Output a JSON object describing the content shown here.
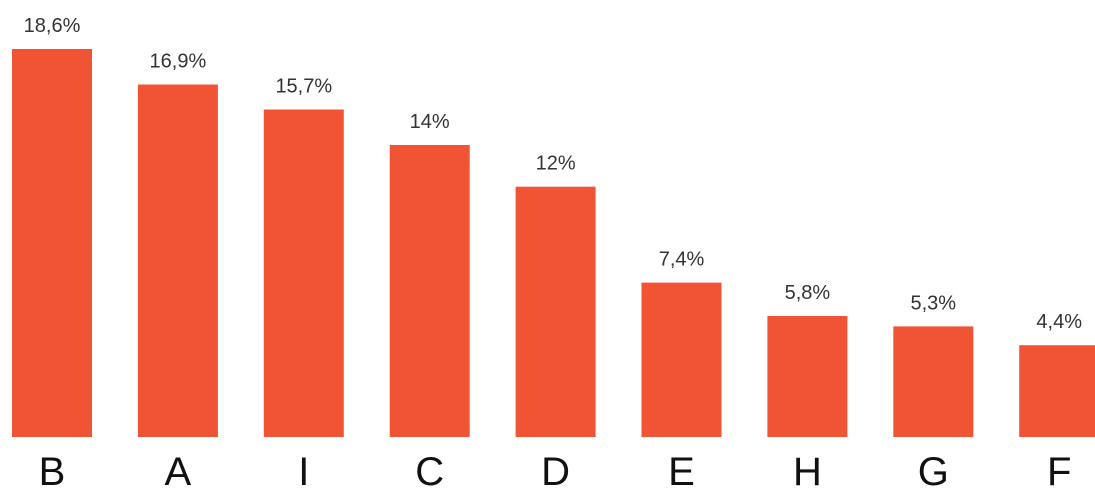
{
  "chart_data": {
    "type": "bar",
    "categories": [
      "B",
      "A",
      "I",
      "C",
      "D",
      "E",
      "H",
      "G",
      "F"
    ],
    "values": [
      18.6,
      16.9,
      15.7,
      14,
      12,
      7.4,
      5.8,
      5.3,
      4.4
    ],
    "value_labels": [
      "18,6%",
      "16,9%",
      "15,7%",
      "14%",
      "12%",
      "7,4%",
      "5,8%",
      "5,3%",
      "4,4%"
    ],
    "unit": "%",
    "ylim": [
      0,
      18.6
    ],
    "grid": false,
    "bar_color": "#F05434"
  }
}
